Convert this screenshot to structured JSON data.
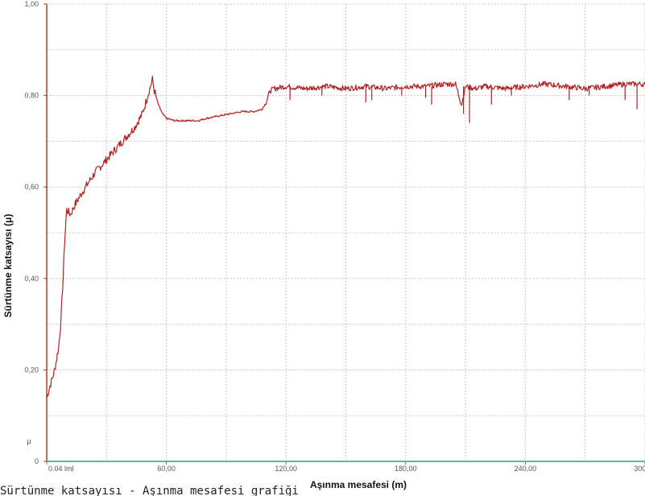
{
  "chart_data": {
    "type": "line",
    "xlabel": "Aşınma mesafesi (m)",
    "ylabel": "Sürtünme katsayısı (μ)",
    "xlim": [
      0,
      300
    ],
    "ylim": [
      0,
      1.0
    ],
    "grid": true,
    "x_ticks": [
      0,
      60,
      120,
      180,
      240,
      300
    ],
    "x_tick_labels": [
      "0.04 lml",
      "60,00",
      "120,00",
      "180,00",
      "240,00",
      "300,00"
    ],
    "y_ticks": [
      0,
      0.2,
      0.4,
      0.6,
      0.8,
      1.0
    ],
    "y_tick_labels": [
      "0",
      "0,20",
      "0,40",
      "0,60",
      "0,80",
      "1,00"
    ],
    "y_unit_label": "μ",
    "series": [
      {
        "color": "#b22222",
        "x": [
          0,
          2,
          4,
          6,
          7,
          8,
          9,
          10,
          12,
          14,
          18,
          24,
          30,
          36,
          40,
          44,
          48,
          50,
          52,
          53,
          54,
          56,
          58,
          60,
          64,
          70,
          76,
          80,
          86,
          92,
          98,
          104,
          108,
          110,
          112,
          114,
          120,
          130,
          140,
          150,
          160,
          170,
          180,
          190,
          200,
          205,
          208,
          210,
          215,
          220,
          230,
          240,
          250,
          260,
          270,
          280,
          290,
          300
        ],
        "y": [
          0.14,
          0.17,
          0.2,
          0.25,
          0.3,
          0.38,
          0.48,
          0.55,
          0.54,
          0.56,
          0.59,
          0.63,
          0.66,
          0.69,
          0.71,
          0.73,
          0.76,
          0.79,
          0.82,
          0.835,
          0.81,
          0.78,
          0.76,
          0.75,
          0.745,
          0.745,
          0.745,
          0.75,
          0.755,
          0.76,
          0.765,
          0.765,
          0.77,
          0.785,
          0.81,
          0.815,
          0.82,
          0.815,
          0.82,
          0.815,
          0.82,
          0.815,
          0.82,
          0.82,
          0.825,
          0.825,
          0.78,
          0.82,
          0.815,
          0.82,
          0.815,
          0.82,
          0.825,
          0.82,
          0.815,
          0.82,
          0.825,
          0.825
        ]
      }
    ],
    "spikes": [
      {
        "x": 122,
        "y": 0.79
      },
      {
        "x": 138,
        "y": 0.8
      },
      {
        "x": 160,
        "y": 0.785
      },
      {
        "x": 163,
        "y": 0.79
      },
      {
        "x": 178,
        "y": 0.8
      },
      {
        "x": 190,
        "y": 0.795
      },
      {
        "x": 193,
        "y": 0.78
      },
      {
        "x": 209,
        "y": 0.76
      },
      {
        "x": 212,
        "y": 0.74
      },
      {
        "x": 223,
        "y": 0.78
      },
      {
        "x": 233,
        "y": 0.8
      },
      {
        "x": 262,
        "y": 0.79
      },
      {
        "x": 272,
        "y": 0.8
      },
      {
        "x": 290,
        "y": 0.79
      },
      {
        "x": 296,
        "y": 0.77
      }
    ]
  },
  "caption": "Sürtünme katsayısı - Aşınma mesafesi grafiği"
}
